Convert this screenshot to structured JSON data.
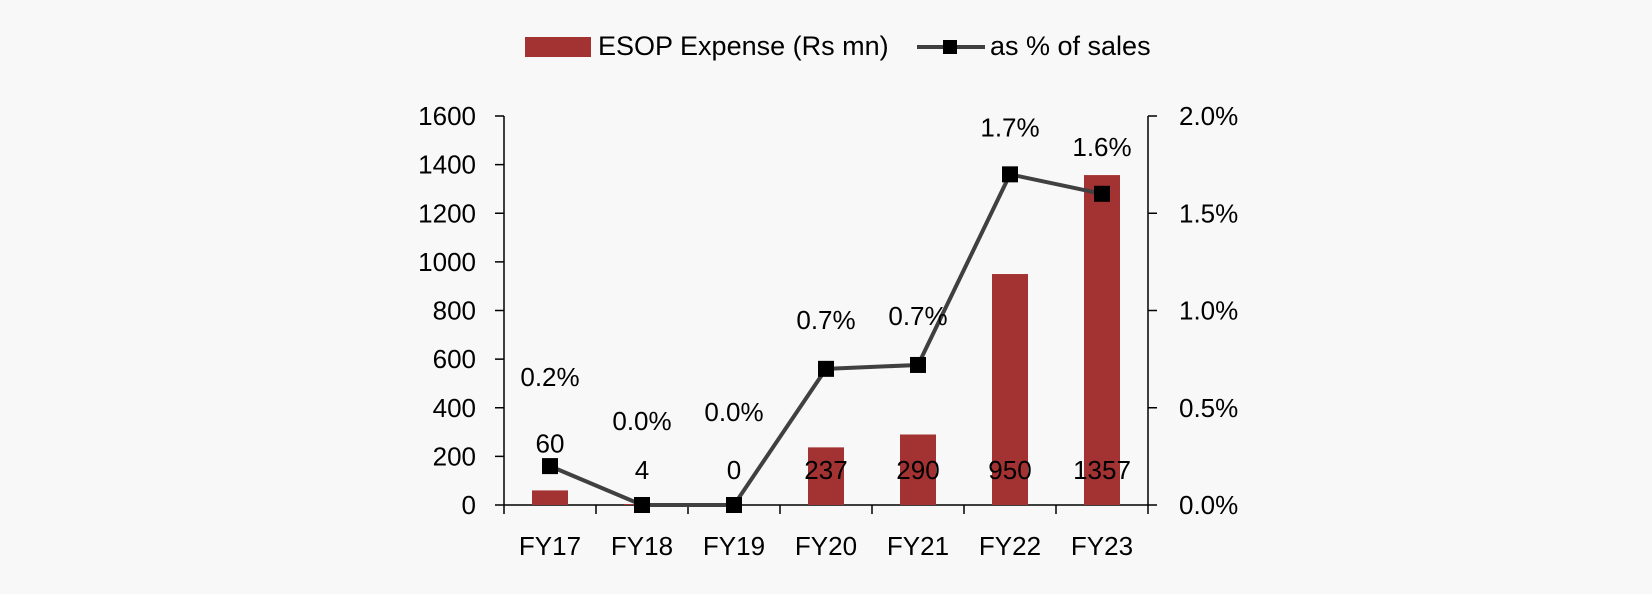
{
  "chart_data": {
    "type": "bar+line",
    "categories": [
      "FY17",
      "FY18",
      "FY19",
      "FY20",
      "FY21",
      "FY22",
      "FY23"
    ],
    "series": [
      {
        "name": "ESOP Expense (Rs mn)",
        "type": "bar",
        "axis": "left",
        "color": "#a33233",
        "values": [
          60,
          4,
          0,
          237,
          290,
          950,
          1357
        ],
        "labels": [
          "60",
          "4",
          "0",
          "237",
          "290",
          "950",
          "1357"
        ]
      },
      {
        "name": "as % of sales",
        "type": "line",
        "axis": "right",
        "color": "#404040",
        "marker_color": "#000000",
        "values": [
          0.2,
          0.0,
          0.0,
          0.7,
          0.72,
          1.7,
          1.6
        ],
        "labels": [
          "0.2%",
          "0.0%",
          "0.0%",
          "0.7%",
          "0.7%",
          "1.7%",
          "1.6%"
        ]
      }
    ],
    "y_left": {
      "min": 0,
      "max": 1600,
      "ticks": [
        "0",
        "200",
        "400",
        "600",
        "800",
        "1000",
        "1200",
        "1400",
        "1600"
      ]
    },
    "y_right": {
      "min": 0,
      "max": 2.0,
      "ticks": [
        "0.0%",
        "0.5%",
        "1.0%",
        "1.5%",
        "2.0%"
      ]
    },
    "legend_position": "top-center",
    "grid": false
  }
}
